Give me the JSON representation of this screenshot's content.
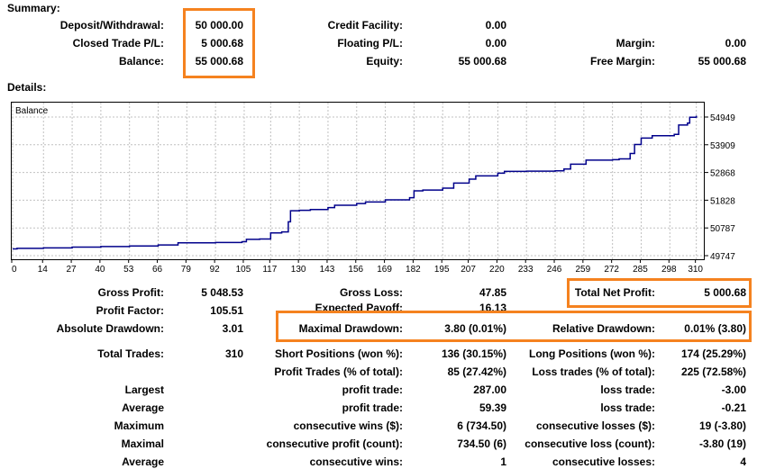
{
  "summary": {
    "heading": "Summary:",
    "deposit_label": "Deposit/Withdrawal:",
    "deposit_value": "50 000.00",
    "closed_pl_label": "Closed Trade P/L:",
    "closed_pl_value": "5 000.68",
    "balance_label": "Balance:",
    "balance_value": "55 000.68",
    "credit_label": "Credit Facility:",
    "credit_value": "0.00",
    "floating_label": "Floating P/L:",
    "floating_value": "0.00",
    "equity_label": "Equity:",
    "equity_value": "55 000.68",
    "margin_label": "Margin:",
    "margin_value": "0.00",
    "free_margin_label": "Free Margin:",
    "free_margin_value": "55 000.68"
  },
  "details": {
    "heading": "Details:",
    "gross_profit_label": "Gross Profit:",
    "gross_profit_value": "5 048.53",
    "gross_loss_label": "Gross Loss:",
    "gross_loss_value": "47.85",
    "total_net_label": "Total Net Profit:",
    "total_net_value": "5 000.68",
    "profit_factor_label": "Profit Factor:",
    "profit_factor_value": "105.51",
    "expected_payoff_label": "Expected Payoff:",
    "expected_payoff_value": "16.13",
    "abs_dd_label": "Absolute Drawdown:",
    "abs_dd_value": "3.01",
    "max_dd_label": "Maximal Drawdown:",
    "max_dd_value": "3.80 (0.01%)",
    "rel_dd_label": "Relative Drawdown:",
    "rel_dd_value": "0.01% (3.80)",
    "total_trades_label": "Total Trades:",
    "total_trades_value": "310",
    "short_label": "Short Positions (won %):",
    "short_value": "136 (30.15%)",
    "long_label": "Long Positions (won %):",
    "long_value": "174 (25.29%)",
    "profit_trades_label": "Profit Trades (% of total):",
    "profit_trades_value": "85 (27.42%)",
    "loss_trades_label": "Loss trades (% of total):",
    "loss_trades_value": "225 (72.58%)",
    "largest_label": "Largest",
    "largest_profit_label": "profit trade:",
    "largest_profit_value": "287.00",
    "largest_loss_label": "loss trade:",
    "largest_loss_value": "-3.00",
    "average_label": "Average",
    "average_profit_label": "profit trade:",
    "average_profit_value": "59.39",
    "average_loss_label": "loss trade:",
    "average_loss_value": "-0.21",
    "maximum_label": "Maximum",
    "max_wins_label": "consecutive wins ($):",
    "max_wins_value": "6 (734.50)",
    "max_losses_label": "consecutive losses ($):",
    "max_losses_value": "19 (-3.80)",
    "maximal_label": "Maximal",
    "maximal_profit_label": "consecutive profit (count):",
    "maximal_profit_value": "734.50 (6)",
    "maximal_loss_label": "consecutive loss (count):",
    "maximal_loss_value": "-3.80 (19)",
    "avg_consec_label": "Average",
    "avg_wins_label": "consecutive wins:",
    "avg_wins_value": "1",
    "avg_losses_label": "consecutive losses:",
    "avg_losses_value": "4"
  },
  "colors": {
    "highlight": "#f5821f",
    "balance_line": "#00008b",
    "grid": "#c0c0c0"
  },
  "chart_data": {
    "type": "line",
    "title": "Balance",
    "ylim": [
      49747,
      55000
    ],
    "y_ticks": [
      "54949",
      "53909",
      "52868",
      "51828",
      "50787",
      "49747"
    ],
    "x_ticks": [
      "0",
      "14",
      "27",
      "40",
      "53",
      "66",
      "79",
      "92",
      "105",
      "117",
      "130",
      "143",
      "156",
      "169",
      "182",
      "195",
      "207",
      "220",
      "233",
      "246",
      "259",
      "272",
      "285",
      "298",
      "310"
    ],
    "grid": true,
    "series": [
      {
        "name": "Balance",
        "x": [
          0,
          2,
          14,
          27,
          40,
          53,
          66,
          75,
          92,
          104,
          106,
          112,
          117,
          122,
          125,
          126,
          130,
          135,
          143,
          146,
          156,
          160,
          169,
          180,
          182,
          186,
          195,
          200,
          207,
          210,
          220,
          223,
          233,
          246,
          250,
          253,
          260,
          272,
          275,
          280,
          282,
          285,
          290,
          300,
          302,
          306,
          307,
          310
        ],
        "y": [
          50000,
          50020,
          50040,
          50070,
          50090,
          50110,
          50150,
          50230,
          50240,
          50270,
          50360,
          50370,
          50600,
          50640,
          51020,
          51430,
          51450,
          51480,
          51550,
          51640,
          51700,
          51760,
          51840,
          51920,
          52180,
          52210,
          52280,
          52470,
          52620,
          52740,
          52840,
          52910,
          52920,
          52930,
          53000,
          53180,
          53330,
          53350,
          53380,
          53580,
          53920,
          54160,
          54250,
          54300,
          54650,
          54720,
          54940,
          55000
        ]
      }
    ]
  }
}
